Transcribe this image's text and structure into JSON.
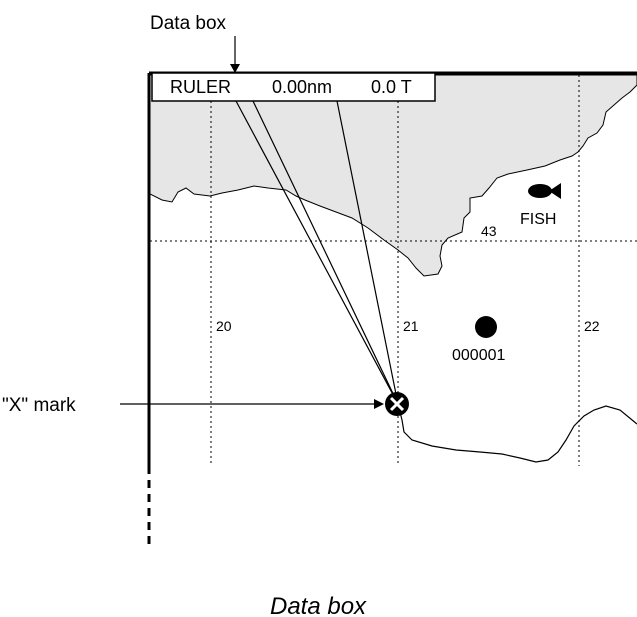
{
  "callouts": {
    "data_box": "Data box",
    "x_mark": "\"X\" mark"
  },
  "data_box": {
    "mode": "RULER",
    "distance": "0.00nm",
    "bearing": "0.0 T"
  },
  "grid_labels": [
    "20",
    "21",
    "22",
    "43"
  ],
  "marks": {
    "fish_label": "FISH",
    "waypoint_label": "000001"
  },
  "caption": "Data box",
  "colors": {
    "land": "#e6e6e6",
    "ink": "#000000",
    "background": "#ffffff"
  },
  "icons": [
    "fish-icon",
    "waypoint-dot-icon",
    "x-mark-icon"
  ]
}
